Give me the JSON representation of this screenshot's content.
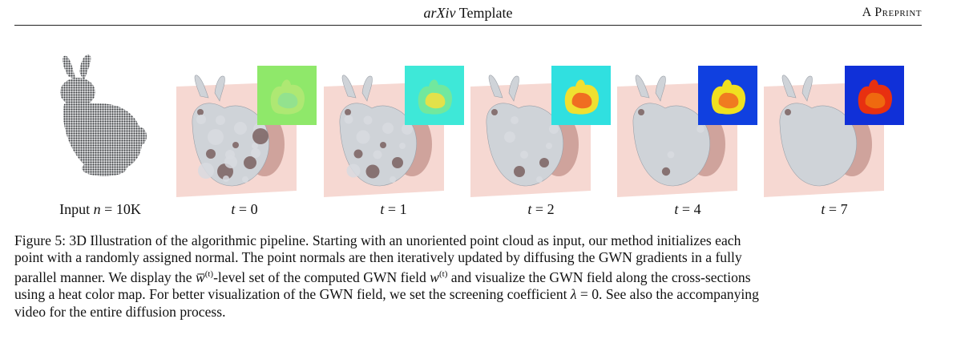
{
  "header": {
    "center_italic": "arXiv",
    "center_rest": "Template",
    "right": "A Preprint"
  },
  "figure": {
    "panels": [
      {
        "id": "input",
        "label": "Input n = 10K",
        "label_prefix": "Input ",
        "label_math": "n",
        "label_rest": " = 10K",
        "style": "points"
      },
      {
        "id": "t0",
        "label": "t = 0",
        "label_math": "t",
        "label_rest": " = 0",
        "inset": "noisy-green",
        "roughness": 1.0
      },
      {
        "id": "t1",
        "label": "t = 1",
        "label_math": "t",
        "label_rest": " = 1",
        "inset": "cyan-mixed",
        "roughness": 0.75
      },
      {
        "id": "t2",
        "label": "t = 2",
        "label_math": "t",
        "label_rest": " = 2",
        "inset": "cyan-warm",
        "roughness": 0.5
      },
      {
        "id": "t4",
        "label": "t = 4",
        "label_math": "t",
        "label_rest": " = 4",
        "inset": "blue-bunny",
        "roughness": 0.2
      },
      {
        "id": "t7",
        "label": "t = 7",
        "label_math": "t",
        "label_rest": " = 7",
        "inset": "blue-red-bunny",
        "roughness": 0.05
      }
    ],
    "colors": {
      "plane": "#f6d8d2",
      "mesh": "#cfd3d8",
      "points": "#3b3d40"
    }
  },
  "caption": {
    "l1": "Figure 5: 3D Illustration of the algorithmic pipeline. Starting with an unoriented point cloud as input, our method initializes each",
    "l2": "point with a randomly assigned normal. The point normals are then iteratively updated by diffusing the GWN gradients in a fully",
    "l3a": "parallel manner. We display the ",
    "l3math1": "w̅",
    "l3sup1": "(t)",
    "l3b": "-level set of the computed GWN field ",
    "l3math2": "w",
    "l3sup2": "(t)",
    "l3c": " and visualize the GWN field along the cross-sections",
    "l4a": "using a heat color map. For better visualization of the GWN field, we set the screening coefficient ",
    "l4math": "λ",
    "l4b": " = 0. See also the accompanying",
    "l5": "video for the entire diffusion process."
  }
}
